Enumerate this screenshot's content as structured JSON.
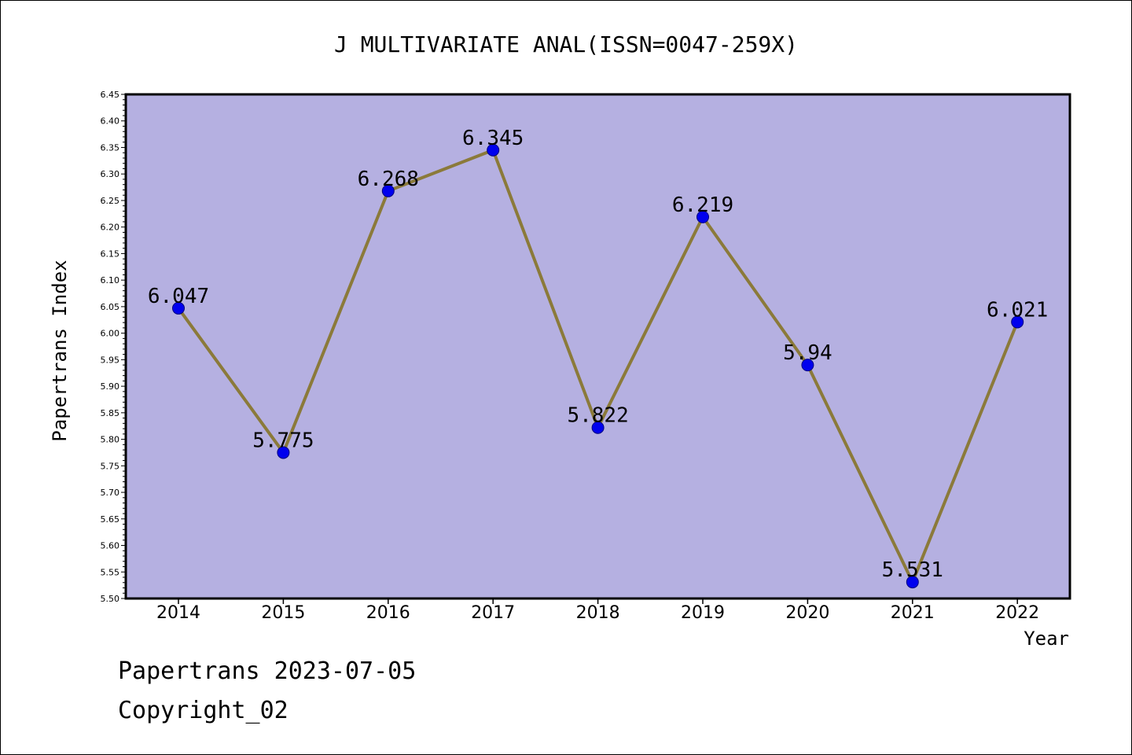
{
  "chart_data": {
    "type": "line",
    "title": "J MULTIVARIATE ANAL(ISSN=0047-259X)",
    "xlabel": "Year",
    "ylabel": "Papertrans Index",
    "categories": [
      "2014",
      "2015",
      "2016",
      "2017",
      "2018",
      "2019",
      "2020",
      "2021",
      "2022"
    ],
    "series": [
      {
        "values": [
          6.047,
          5.775,
          6.268,
          6.345,
          5.822,
          6.219,
          5.94,
          5.531,
          6.021
        ],
        "labels": [
          "6.047",
          "5.775",
          "6.268",
          "6.345",
          "5.822",
          "6.219",
          "5.94",
          "5.531",
          "6.021"
        ]
      }
    ],
    "ylim": [
      5.5,
      6.45
    ],
    "yticks": [
      "5.50",
      "5.55",
      "5.60",
      "5.65",
      "5.70",
      "5.75",
      "5.80",
      "5.85",
      "5.90",
      "5.95",
      "6.00",
      "6.05",
      "6.10",
      "6.15",
      "6.20",
      "6.25",
      "6.30",
      "6.35",
      "6.40",
      "6.45"
    ],
    "grid": false,
    "colors": {
      "plot_background": "#b5b0e1",
      "line": "#8b7a3a",
      "marker": "#0000ee",
      "marker_edge": "#000080"
    }
  },
  "footer": {
    "line1": "Papertrans 2023-07-05",
    "line2": "Copyright_02"
  }
}
